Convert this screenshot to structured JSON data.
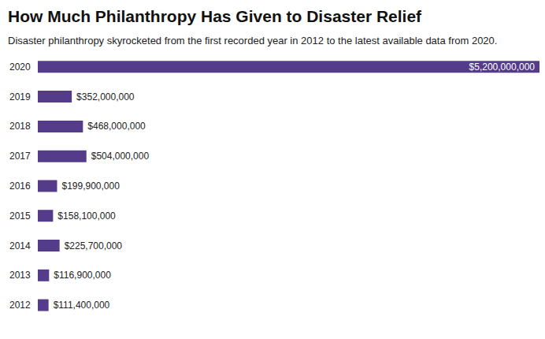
{
  "chart_data": {
    "type": "bar",
    "title": "How Much Philanthropy Has Given to Disaster Relief",
    "subtitle": "Disaster philanthropy skyrocketed from the first recorded year in 2012 to the latest available data from 2020.",
    "orientation": "horizontal",
    "categories": [
      "2020",
      "2019",
      "2018",
      "2017",
      "2016",
      "2015",
      "2014",
      "2013",
      "2012"
    ],
    "values": [
      5200000000,
      352000000,
      468000000,
      504000000,
      199900000,
      158100000,
      225700000,
      116900000,
      111400000
    ],
    "value_labels": [
      "$5,200,000,000",
      "$352,000,000",
      "$468,000,000",
      "$504,000,000",
      "$199,900,000",
      "$158,100,000",
      "$225,700,000",
      "$116,900,000",
      "$111,400,000"
    ],
    "color": "#553c8a",
    "xlim": [
      0,
      5200000000
    ],
    "data_labels": true,
    "tick_labels": "y"
  }
}
